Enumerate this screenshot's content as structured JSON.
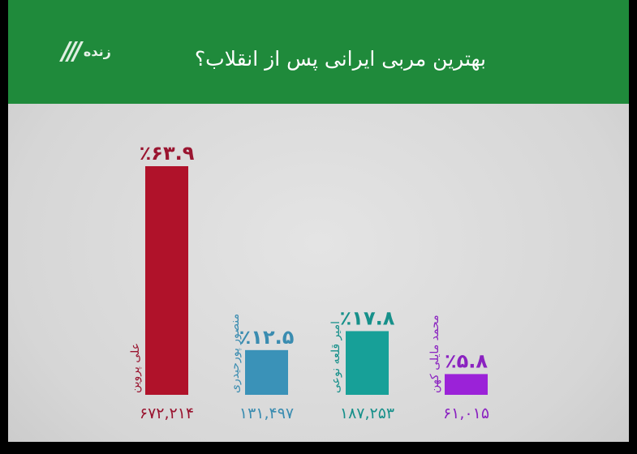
{
  "header": {
    "logo_text": "زنده",
    "title": "بهترین مربی ایرانی پس از انقلاب؟"
  },
  "colors": {
    "header": "#1f8a3b",
    "background": "#dcdcdc"
  },
  "chart_data": {
    "type": "bar",
    "title": "بهترین مربی ایرانی پس از انقلاب؟",
    "categories": [
      "علی پروین",
      "منصور پورحیدری",
      "امیر قلعه نوعی",
      "محمد مایلی کهن"
    ],
    "values": [
      63.9,
      12.5,
      17.8,
      5.8
    ],
    "value_labels": [
      "٪۶۳.۹",
      "٪۱۲.۵",
      "٪۱۷.۸",
      "٪۵.۸"
    ],
    "votes": [
      "۶۷۲,۲۱۴",
      "۱۳۱,۴۹۷",
      "۱۸۷,۲۵۳",
      "۶۱,۰۱۵"
    ],
    "colors": [
      "#b0122a",
      "#3a92b8",
      "#17a098",
      "#9b22d8"
    ],
    "label_colors": [
      "#9a1530",
      "#3a8cb0",
      "#16908a",
      "#8a22c0"
    ],
    "ylim": [
      0,
      65
    ],
    "grid": false,
    "legend": "none"
  }
}
